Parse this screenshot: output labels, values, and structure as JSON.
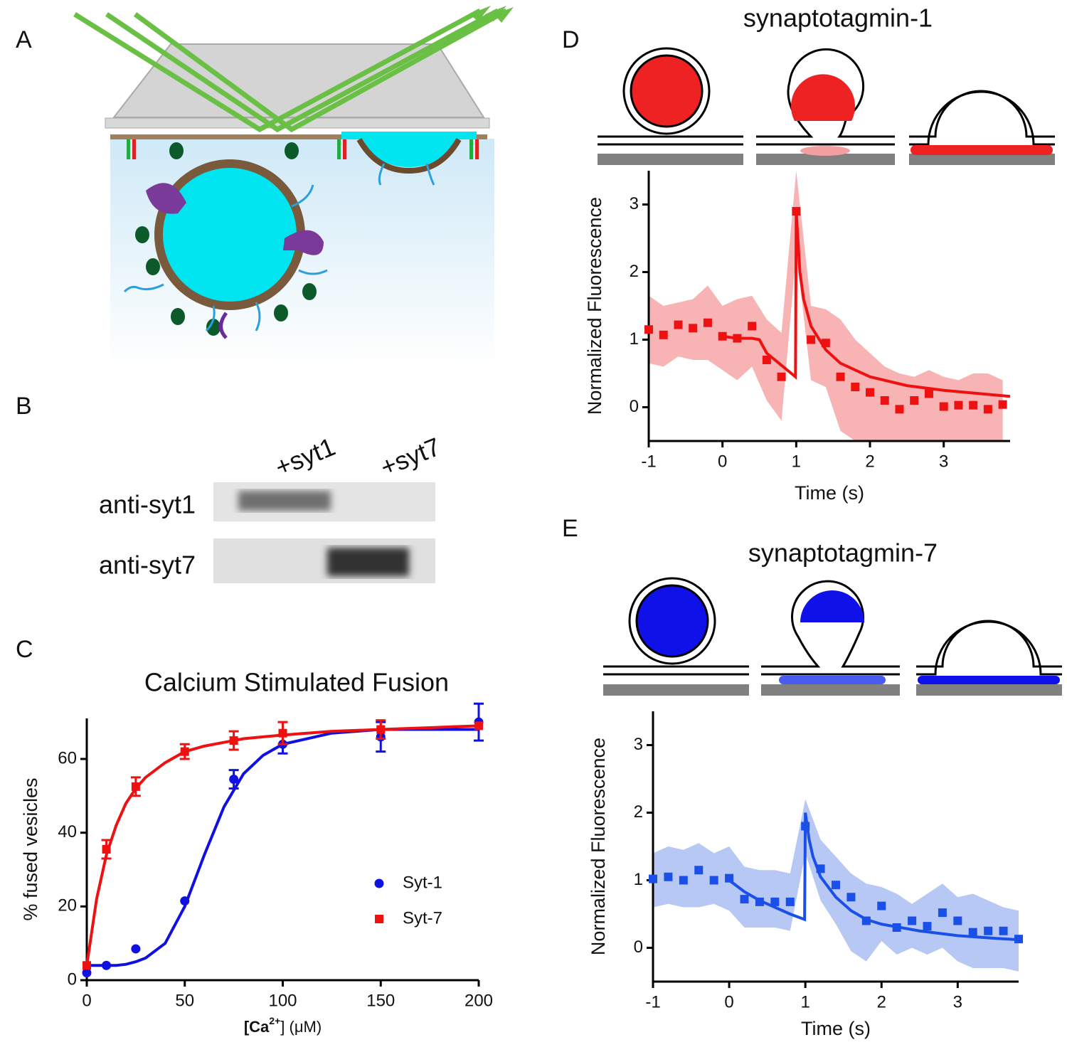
{
  "panels": [
    "A",
    "B"
  ],
  "blot": {
    "lanes": [
      "+syt1",
      "+syt7"
    ],
    "rows": [
      "anti-syt1",
      "anti-syt7"
    ]
  },
  "chart_data": [
    {
      "type": "scatter",
      "panel": "C",
      "title": "Calcium Stimulated Fusion",
      "ylabel": "% fused vesicles",
      "xlabel": {
        "main": "[Ca",
        "sup": "2+",
        "rest": "] (μM)"
      },
      "x": [
        0,
        10,
        25,
        50,
        75,
        100,
        150,
        200
      ],
      "fit_x": [
        0,
        5,
        10,
        15,
        20,
        25,
        30,
        40,
        50,
        60,
        70,
        80,
        90,
        100,
        125,
        150,
        175,
        200
      ],
      "series": [
        {
          "name": "Syt-1",
          "color": "#1010e0",
          "marker": "circle",
          "values": [
            2,
            4,
            8.5,
            21.5,
            54.5,
            64,
            66,
            70
          ],
          "errors": [
            null,
            null,
            null,
            null,
            2.5,
            2.5,
            4,
            5
          ],
          "fit_values": [
            4,
            4,
            4,
            4,
            4.3,
            5,
            6,
            10,
            20,
            34,
            47,
            56,
            61,
            64,
            67,
            68,
            68,
            68
          ]
        },
        {
          "name": "Syt-7",
          "color": "#ee1111",
          "marker": "square",
          "values": [
            4,
            35.5,
            52.5,
            62,
            65,
            67,
            68,
            69
          ],
          "errors": [
            null,
            2.5,
            2.5,
            2,
            2.5,
            3,
            2.5,
            null
          ],
          "fit_values": [
            4,
            22,
            34,
            42,
            48,
            52,
            55,
            59,
            62,
            63.5,
            64.5,
            65.5,
            66,
            66.5,
            67.5,
            68,
            68.5,
            69
          ]
        }
      ],
      "legend": "lower right",
      "xlim": [
        0,
        200
      ],
      "xticks": [
        0,
        50,
        100,
        150,
        200
      ],
      "ylim": [
        0,
        71
      ],
      "yticks": [
        0,
        20,
        40,
        60
      ]
    },
    {
      "type": "scatter",
      "panel": "D",
      "title": "synaptotagmin-1",
      "ylabel": "Normalized Fluorescence",
      "xlabel": "Time (s)",
      "color": "#ee1111",
      "band_color": "#f8b4b4",
      "x": [
        -1,
        -0.8,
        -0.6,
        -0.4,
        -0.2,
        0,
        0.2,
        0.4,
        0.6,
        0.8,
        1.0,
        1.2,
        1.4,
        1.6,
        1.8,
        2.0,
        2.2,
        2.4,
        2.6,
        2.8,
        3.0,
        3.2,
        3.4,
        3.6,
        3.8
      ],
      "values": [
        1.15,
        1.07,
        1.22,
        1.17,
        1.25,
        1.05,
        1.02,
        1.2,
        0.7,
        0.45,
        2.9,
        1.0,
        0.95,
        0.45,
        0.3,
        0.22,
        0.1,
        -0.03,
        0.1,
        0.2,
        0.01,
        0.03,
        0.03,
        -0.03,
        0.04
      ],
      "upper": [
        1.65,
        1.5,
        1.55,
        1.6,
        1.8,
        1.5,
        1.6,
        1.65,
        1.3,
        1.1,
        3.5,
        1.5,
        1.45,
        1.3,
        1.0,
        0.8,
        0.6,
        0.5,
        0.45,
        0.55,
        0.45,
        0.4,
        0.5,
        0.5,
        0.4
      ],
      "lower": [
        0.65,
        0.6,
        0.75,
        0.7,
        0.7,
        0.55,
        0.4,
        0.6,
        0.1,
        -0.2,
        2.3,
        0.4,
        0.3,
        -0.35,
        -0.5,
        -0.5,
        -0.5,
        -0.5,
        -0.5,
        -0.5,
        -0.5,
        -0.5,
        -0.5,
        -0.5,
        -0.5
      ],
      "fit_x": [
        0,
        0.2,
        0.4,
        0.5,
        0.6,
        0.8,
        0.99,
        1.0,
        1.05,
        1.1,
        1.2,
        1.4,
        1.6,
        2,
        2.5,
        3,
        3.5,
        3.9
      ],
      "fit_values": [
        1.05,
        1.02,
        1.02,
        1.0,
        0.8,
        0.62,
        0.45,
        2.9,
        2.0,
        1.6,
        1.2,
        0.85,
        0.65,
        0.45,
        0.32,
        0.25,
        0.2,
        0.16
      ],
      "xlim": [
        -1,
        3.9
      ],
      "xticks": [
        -1,
        0,
        1,
        2,
        3
      ],
      "ylim": [
        -0.5,
        3.5
      ],
      "yticks": [
        0,
        1,
        2,
        3
      ]
    },
    {
      "type": "scatter",
      "panel": "E",
      "title": "synaptotagmin-7",
      "ylabel": "Normalized Fluorescence",
      "xlabel": "Time (s)",
      "color": "#1a50e8",
      "band_color": "#b8c8f4",
      "x": [
        -1,
        -0.8,
        -0.6,
        -0.4,
        -0.2,
        0,
        0.2,
        0.4,
        0.6,
        0.8,
        1.0,
        1.2,
        1.4,
        1.6,
        1.8,
        2.0,
        2.2,
        2.4,
        2.6,
        2.8,
        3.0,
        3.2,
        3.4,
        3.6,
        3.8
      ],
      "values": [
        1.02,
        1.05,
        1.0,
        1.15,
        1.0,
        1.03,
        0.72,
        0.68,
        0.68,
        0.68,
        1.8,
        1.17,
        0.93,
        0.75,
        0.4,
        0.62,
        0.3,
        0.4,
        0.32,
        0.52,
        0.4,
        0.23,
        0.25,
        0.25,
        0.13
      ],
      "upper": [
        1.4,
        1.5,
        1.45,
        1.55,
        1.4,
        1.5,
        1.2,
        1.15,
        1.15,
        1.1,
        2.2,
        1.6,
        1.35,
        1.1,
        0.95,
        0.9,
        0.8,
        0.65,
        0.8,
        0.95,
        0.75,
        0.8,
        0.7,
        0.6,
        0.55
      ],
      "lower": [
        0.6,
        0.65,
        0.6,
        0.6,
        0.65,
        0.55,
        0.3,
        0.3,
        0.3,
        0.25,
        1.4,
        0.7,
        0.35,
        -0.05,
        -0.2,
        0.1,
        -0.1,
        0,
        -0.1,
        0.0,
        -0.2,
        -0.3,
        -0.3,
        -0.3,
        -0.35
      ],
      "fit_x": [
        0,
        0.2,
        0.4,
        0.6,
        0.8,
        0.99,
        1.0,
        1.05,
        1.1,
        1.2,
        1.4,
        1.6,
        1.8,
        2,
        2.5,
        3,
        3.5,
        3.8
      ],
      "fit_values": [
        1.0,
        0.83,
        0.7,
        0.6,
        0.5,
        0.42,
        2.0,
        1.6,
        1.35,
        1.05,
        0.75,
        0.55,
        0.42,
        0.35,
        0.25,
        0.18,
        0.14,
        0.12
      ],
      "xlim": [
        -1,
        3.8
      ],
      "xticks": [
        -1,
        0,
        1,
        2,
        3
      ],
      "ylim": [
        -0.5,
        3.5
      ],
      "yticks": [
        0,
        1,
        2,
        3
      ]
    }
  ]
}
